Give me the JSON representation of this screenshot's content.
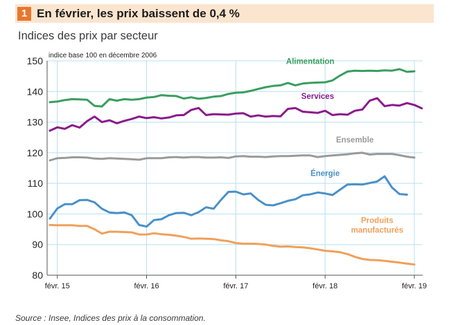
{
  "header": {
    "number": "1",
    "title": "En février, les prix baissent de 0,4 %"
  },
  "subtitle": "Indices des prix par secteur",
  "source": "Source : Insee, Indices des prix à la consommation.",
  "colors": {
    "header_band": "#fbe5cf",
    "header_number_bg": "#e8772e",
    "grid": "#b7dff2",
    "alimentation": "#3a9e5f",
    "services": "#8b1a8b",
    "ensemble": "#9a9a9a",
    "energie": "#4a90c8",
    "produits_manufactures": "#f0a05a"
  },
  "chart_data": {
    "type": "line",
    "note": "indice base 100 en décembre 2006",
    "ylim": [
      80,
      150
    ],
    "yticks": [
      80,
      90,
      100,
      110,
      120,
      130,
      140,
      150
    ],
    "x_domain": [
      "2015-01",
      "2019-02"
    ],
    "xticks": [
      {
        "date": "2015-02",
        "label": "févr. 15"
      },
      {
        "date": "2016-02",
        "label": "févr. 16"
      },
      {
        "date": "2017-02",
        "label": "févr. 17"
      },
      {
        "date": "2018-02",
        "label": "févr. 18"
      },
      {
        "date": "2019-02",
        "label": "févr. 19"
      }
    ],
    "grid": true,
    "series": [
      {
        "name": "Alimentation",
        "color": "#3a9e5f",
        "values": [
          [
            "2015-01",
            136.5
          ],
          [
            "2015-02",
            136.7
          ],
          [
            "2015-03",
            137.2
          ],
          [
            "2015-04",
            137.5
          ],
          [
            "2015-05",
            137.4
          ],
          [
            "2015-06",
            137.3
          ],
          [
            "2015-07",
            135.3
          ],
          [
            "2015-08",
            135.1
          ],
          [
            "2015-09",
            137.5
          ],
          [
            "2015-10",
            137.0
          ],
          [
            "2015-11",
            137.5
          ],
          [
            "2015-12",
            137.3
          ],
          [
            "2016-01",
            137.5
          ],
          [
            "2016-02",
            138.0
          ],
          [
            "2016-03",
            138.2
          ],
          [
            "2016-04",
            138.8
          ],
          [
            "2016-05",
            138.6
          ],
          [
            "2016-06",
            138.5
          ],
          [
            "2016-07",
            137.7
          ],
          [
            "2016-08",
            138.1
          ],
          [
            "2016-09",
            137.6
          ],
          [
            "2016-10",
            137.9
          ],
          [
            "2016-11",
            138.3
          ],
          [
            "2016-12",
            138.5
          ],
          [
            "2017-01",
            139.2
          ],
          [
            "2017-02",
            139.6
          ],
          [
            "2017-03",
            139.7
          ],
          [
            "2017-04",
            140.2
          ],
          [
            "2017-05",
            140.8
          ],
          [
            "2017-06",
            141.4
          ],
          [
            "2017-07",
            141.8
          ],
          [
            "2017-08",
            142.0
          ],
          [
            "2017-09",
            142.8
          ],
          [
            "2017-10",
            142.0
          ],
          [
            "2017-11",
            142.6
          ],
          [
            "2017-12",
            142.8
          ],
          [
            "2018-01",
            142.9
          ],
          [
            "2018-02",
            143.0
          ],
          [
            "2018-03",
            143.6
          ],
          [
            "2018-04",
            145.2
          ],
          [
            "2018-05",
            146.5
          ],
          [
            "2018-06",
            146.8
          ],
          [
            "2018-07",
            146.7
          ],
          [
            "2018-08",
            146.8
          ],
          [
            "2018-09",
            146.7
          ],
          [
            "2018-10",
            146.9
          ],
          [
            "2018-11",
            146.8
          ],
          [
            "2018-12",
            147.3
          ],
          [
            "2019-01",
            146.4
          ],
          [
            "2019-02",
            146.6
          ]
        ]
      },
      {
        "name": "Services",
        "color": "#8b1a8b",
        "values": [
          [
            "2015-01",
            127.2
          ],
          [
            "2015-02",
            128.3
          ],
          [
            "2015-03",
            127.8
          ],
          [
            "2015-04",
            129.0
          ],
          [
            "2015-05",
            128.2
          ],
          [
            "2015-06",
            130.3
          ],
          [
            "2015-07",
            131.8
          ],
          [
            "2015-08",
            130.0
          ],
          [
            "2015-09",
            130.6
          ],
          [
            "2015-10",
            129.6
          ],
          [
            "2015-11",
            130.4
          ],
          [
            "2015-12",
            131.0
          ],
          [
            "2016-01",
            131.8
          ],
          [
            "2016-02",
            131.3
          ],
          [
            "2016-03",
            131.6
          ],
          [
            "2016-04",
            131.2
          ],
          [
            "2016-05",
            131.5
          ],
          [
            "2016-06",
            132.2
          ],
          [
            "2016-07",
            132.3
          ],
          [
            "2016-08",
            134.0
          ],
          [
            "2016-09",
            134.6
          ],
          [
            "2016-10",
            132.3
          ],
          [
            "2016-11",
            132.6
          ],
          [
            "2016-12",
            132.5
          ],
          [
            "2017-01",
            132.4
          ],
          [
            "2017-02",
            132.8
          ],
          [
            "2017-03",
            132.9
          ],
          [
            "2017-04",
            131.8
          ],
          [
            "2017-05",
            132.2
          ],
          [
            "2017-06",
            131.8
          ],
          [
            "2017-07",
            132.0
          ],
          [
            "2017-08",
            131.9
          ],
          [
            "2017-09",
            134.3
          ],
          [
            "2017-10",
            134.6
          ],
          [
            "2017-11",
            133.4
          ],
          [
            "2017-12",
            133.2
          ],
          [
            "2018-01",
            133.0
          ],
          [
            "2018-02",
            133.7
          ],
          [
            "2018-03",
            132.3
          ],
          [
            "2018-04",
            132.6
          ],
          [
            "2018-05",
            132.4
          ],
          [
            "2018-06",
            133.7
          ],
          [
            "2018-07",
            134.1
          ],
          [
            "2018-08",
            137.0
          ],
          [
            "2018-09",
            137.8
          ],
          [
            "2018-10",
            135.2
          ],
          [
            "2018-11",
            135.6
          ],
          [
            "2018-12",
            135.4
          ],
          [
            "2019-01",
            136.2
          ],
          [
            "2019-02",
            135.6
          ],
          [
            "2019-03",
            134.5
          ]
        ]
      },
      {
        "name": "Ensemble",
        "color": "#9a9a9a",
        "values": [
          [
            "2015-01",
            117.5
          ],
          [
            "2015-02",
            118.2
          ],
          [
            "2015-03",
            118.3
          ],
          [
            "2015-04",
            118.5
          ],
          [
            "2015-05",
            118.5
          ],
          [
            "2015-06",
            118.4
          ],
          [
            "2015-07",
            118.1
          ],
          [
            "2015-08",
            118.0
          ],
          [
            "2015-09",
            118.2
          ],
          [
            "2015-10",
            118.1
          ],
          [
            "2015-11",
            118.0
          ],
          [
            "2015-12",
            117.9
          ],
          [
            "2016-01",
            117.7
          ],
          [
            "2016-02",
            118.2
          ],
          [
            "2016-03",
            118.2
          ],
          [
            "2016-04",
            118.2
          ],
          [
            "2016-05",
            118.5
          ],
          [
            "2016-06",
            118.6
          ],
          [
            "2016-07",
            118.4
          ],
          [
            "2016-08",
            118.6
          ],
          [
            "2016-09",
            118.6
          ],
          [
            "2016-10",
            118.4
          ],
          [
            "2016-11",
            118.4
          ],
          [
            "2016-12",
            118.5
          ],
          [
            "2017-01",
            118.3
          ],
          [
            "2017-02",
            118.8
          ],
          [
            "2017-03",
            118.9
          ],
          [
            "2017-04",
            118.7
          ],
          [
            "2017-05",
            118.7
          ],
          [
            "2017-06",
            118.6
          ],
          [
            "2017-07",
            118.8
          ],
          [
            "2017-08",
            118.9
          ],
          [
            "2017-09",
            118.9
          ],
          [
            "2017-10",
            119.0
          ],
          [
            "2017-11",
            119.1
          ],
          [
            "2017-12",
            119.1
          ],
          [
            "2018-01",
            118.6
          ],
          [
            "2018-02",
            118.9
          ],
          [
            "2018-03",
            119.1
          ],
          [
            "2018-04",
            119.3
          ],
          [
            "2018-05",
            119.5
          ],
          [
            "2018-06",
            119.8
          ],
          [
            "2018-07",
            120.0
          ],
          [
            "2018-08",
            119.4
          ],
          [
            "2018-09",
            119.6
          ],
          [
            "2018-10",
            119.6
          ],
          [
            "2018-11",
            119.6
          ],
          [
            "2018-12",
            119.2
          ],
          [
            "2019-01",
            118.7
          ],
          [
            "2019-02",
            118.4
          ]
        ]
      },
      {
        "name": "Énergie",
        "color": "#4a90c8",
        "values": [
          [
            "2015-01",
            98.5
          ],
          [
            "2015-02",
            101.8
          ],
          [
            "2015-03",
            103.2
          ],
          [
            "2015-04",
            103.2
          ],
          [
            "2015-05",
            104.5
          ],
          [
            "2015-06",
            104.6
          ],
          [
            "2015-07",
            103.8
          ],
          [
            "2015-08",
            101.7
          ],
          [
            "2015-09",
            100.5
          ],
          [
            "2015-10",
            100.3
          ],
          [
            "2015-11",
            100.5
          ],
          [
            "2015-12",
            99.6
          ],
          [
            "2016-01",
            96.4
          ],
          [
            "2016-02",
            95.9
          ],
          [
            "2016-03",
            98.0
          ],
          [
            "2016-04",
            98.3
          ],
          [
            "2016-05",
            99.6
          ],
          [
            "2016-06",
            100.3
          ],
          [
            "2016-07",
            100.4
          ],
          [
            "2016-08",
            99.6
          ],
          [
            "2016-09",
            100.6
          ],
          [
            "2016-10",
            102.2
          ],
          [
            "2016-11",
            101.7
          ],
          [
            "2016-12",
            104.6
          ],
          [
            "2017-01",
            107.2
          ],
          [
            "2017-02",
            107.3
          ],
          [
            "2017-03",
            106.4
          ],
          [
            "2017-04",
            106.7
          ],
          [
            "2017-05",
            104.6
          ],
          [
            "2017-06",
            103.0
          ],
          [
            "2017-07",
            102.8
          ],
          [
            "2017-08",
            103.5
          ],
          [
            "2017-09",
            104.3
          ],
          [
            "2017-10",
            104.8
          ],
          [
            "2017-11",
            106.1
          ],
          [
            "2017-12",
            106.4
          ],
          [
            "2018-01",
            107.0
          ],
          [
            "2018-02",
            106.7
          ],
          [
            "2018-03",
            106.2
          ],
          [
            "2018-04",
            107.9
          ],
          [
            "2018-05",
            109.6
          ],
          [
            "2018-06",
            109.7
          ],
          [
            "2018-07",
            109.6
          ],
          [
            "2018-08",
            110.1
          ],
          [
            "2018-09",
            110.6
          ],
          [
            "2018-10",
            112.3
          ],
          [
            "2018-11",
            108.6
          ],
          [
            "2018-12",
            106.5
          ],
          [
            "2019-01",
            106.3
          ]
        ]
      },
      {
        "name": "Produits manufacturés",
        "color": "#f0a05a",
        "values": [
          [
            "2015-01",
            96.4
          ],
          [
            "2015-02",
            96.3
          ],
          [
            "2015-03",
            96.3
          ],
          [
            "2015-04",
            96.3
          ],
          [
            "2015-05",
            96.1
          ],
          [
            "2015-06",
            96.1
          ],
          [
            "2015-07",
            95.0
          ],
          [
            "2015-08",
            93.6
          ],
          [
            "2015-09",
            94.2
          ],
          [
            "2015-10",
            94.2
          ],
          [
            "2015-11",
            94.1
          ],
          [
            "2015-12",
            94.0
          ],
          [
            "2016-01",
            93.3
          ],
          [
            "2016-02",
            93.3
          ],
          [
            "2016-03",
            93.7
          ],
          [
            "2016-04",
            93.4
          ],
          [
            "2016-05",
            93.2
          ],
          [
            "2016-06",
            92.9
          ],
          [
            "2016-07",
            92.5
          ],
          [
            "2016-08",
            91.9
          ],
          [
            "2016-09",
            92.0
          ],
          [
            "2016-10",
            91.9
          ],
          [
            "2016-11",
            91.8
          ],
          [
            "2016-12",
            91.4
          ],
          [
            "2017-01",
            91.1
          ],
          [
            "2017-02",
            90.5
          ],
          [
            "2017-03",
            90.3
          ],
          [
            "2017-04",
            90.3
          ],
          [
            "2017-05",
            90.2
          ],
          [
            "2017-06",
            90.0
          ],
          [
            "2017-07",
            89.6
          ],
          [
            "2017-08",
            89.3
          ],
          [
            "2017-09",
            89.4
          ],
          [
            "2017-10",
            89.2
          ],
          [
            "2017-11",
            89.1
          ],
          [
            "2017-12",
            88.8
          ],
          [
            "2018-01",
            88.4
          ],
          [
            "2018-02",
            88.0
          ],
          [
            "2018-03",
            87.8
          ],
          [
            "2018-04",
            87.5
          ],
          [
            "2018-05",
            86.9
          ],
          [
            "2018-06",
            86.0
          ],
          [
            "2018-07",
            85.3
          ],
          [
            "2018-08",
            85.0
          ],
          [
            "2018-09",
            84.9
          ],
          [
            "2018-10",
            84.7
          ],
          [
            "2018-11",
            84.4
          ],
          [
            "2018-12",
            84.1
          ],
          [
            "2019-01",
            83.8
          ],
          [
            "2019-02",
            83.5
          ]
        ]
      }
    ],
    "labels": [
      {
        "series": "Alimentation",
        "lines": [
          "Alimentation"
        ],
        "at": [
          "2017-12",
          149.0
        ],
        "anchor": "middle"
      },
      {
        "series": "Services",
        "lines": [
          "Services"
        ],
        "at": [
          "2018-01",
          137.6
        ],
        "anchor": "middle"
      },
      {
        "series": "Ensemble",
        "lines": [
          "Ensemble"
        ],
        "at": [
          "2018-06",
          123.3
        ],
        "anchor": "middle"
      },
      {
        "series": "Énergie",
        "lines": [
          "Énergie"
        ],
        "at": [
          "2018-02",
          112.4
        ],
        "anchor": "middle"
      },
      {
        "series": "Produits manufacturés",
        "lines": [
          "Produits",
          "manufacturés"
        ],
        "at": [
          "2018-09",
          97.0
        ],
        "anchor": "middle"
      }
    ]
  }
}
